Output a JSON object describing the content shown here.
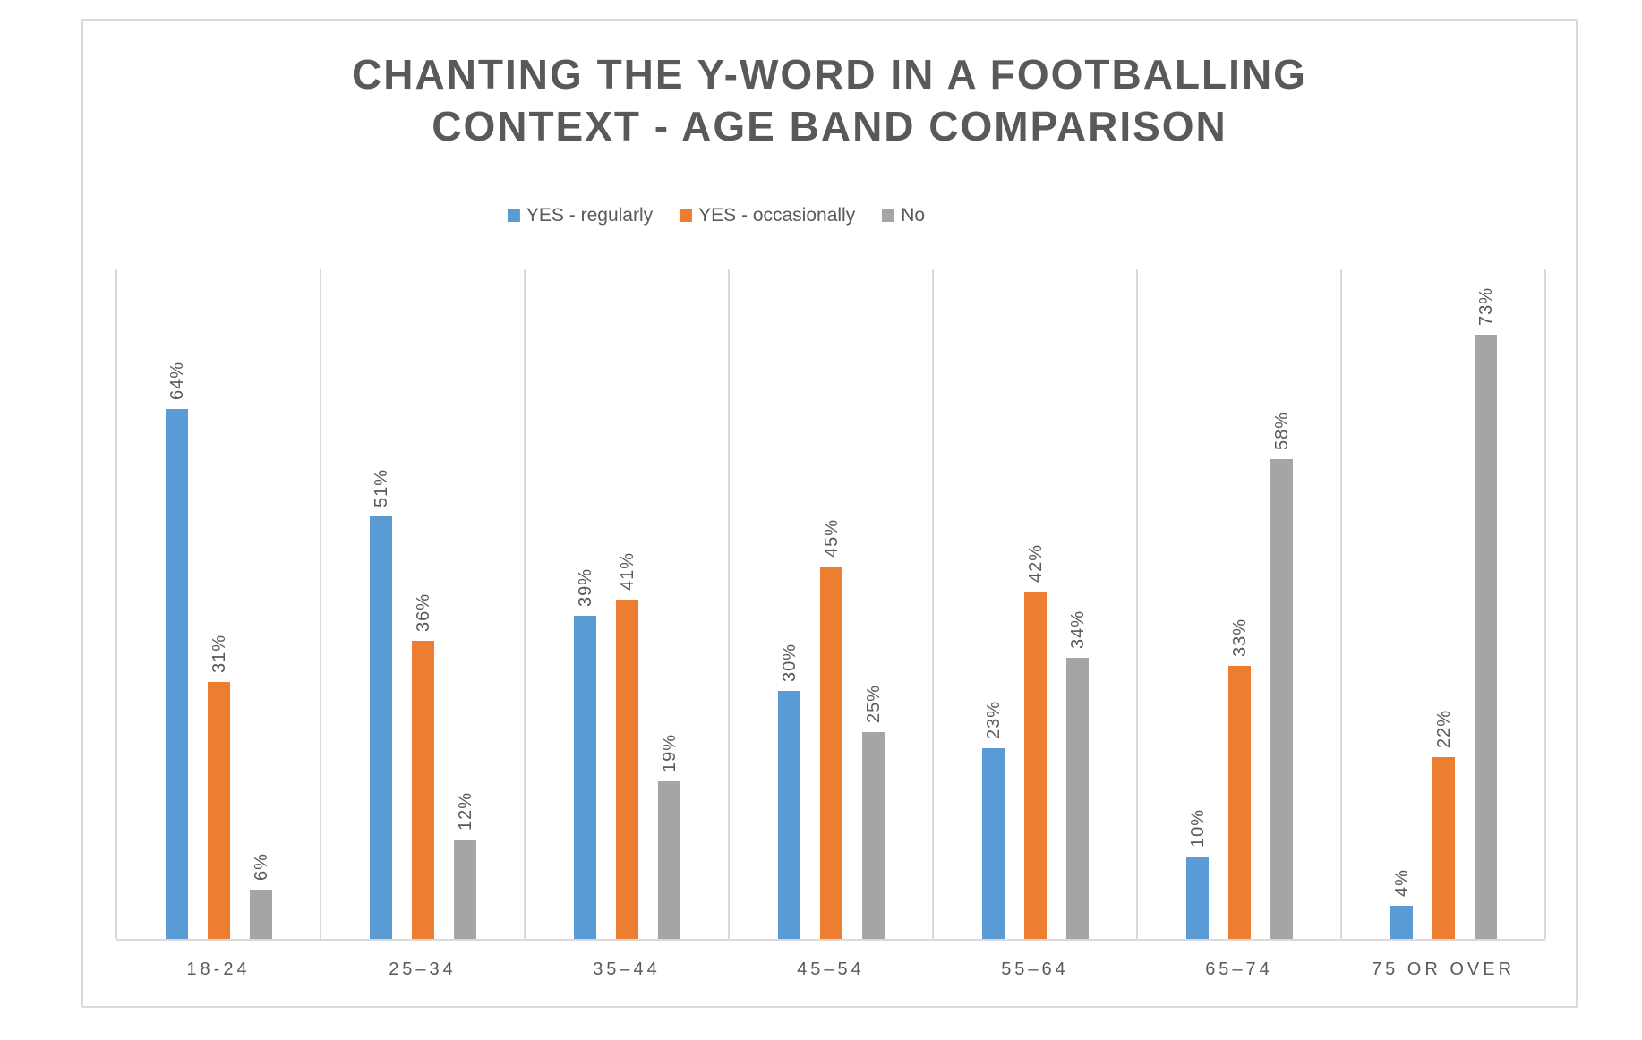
{
  "chart_data": {
    "type": "bar",
    "title": "CHANTING THE Y-WORD IN A FOOTBALLING CONTEXT - AGE BAND COMPARISON",
    "categories": [
      "18-24",
      "25–34",
      "35–44",
      "45–54",
      "55–64",
      "65–74",
      "75 OR OVER"
    ],
    "series": [
      {
        "name": "YES - regularly",
        "color": "#5B9BD5",
        "values": [
          64,
          51,
          39,
          30,
          23,
          10,
          4
        ]
      },
      {
        "name": "YES - occasionally",
        "color": "#ED7D31",
        "values": [
          31,
          36,
          41,
          45,
          42,
          33,
          22
        ]
      },
      {
        "name": "No",
        "color": "#A5A5A5",
        "values": [
          6,
          12,
          19,
          25,
          34,
          58,
          73
        ]
      }
    ],
    "value_suffix": "%",
    "data_labels": "outside end, rotated 90° counter-clockwise",
    "ylim": [
      0,
      81
    ],
    "y_axis_visible": false,
    "grid": "vertical category separator lines only",
    "legend_position": "top",
    "colors": {
      "text": "#595959",
      "gridline": "#D9D9D9",
      "frame_border": "#D9D9D9",
      "background": "#FFFFFF"
    }
  }
}
